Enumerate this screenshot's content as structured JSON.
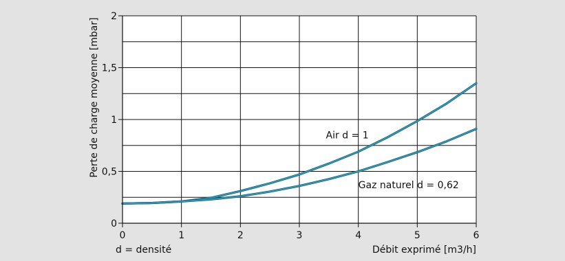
{
  "chart_data": {
    "type": "line",
    "title": "",
    "xlabel": "Débit exprimé [m3/h]",
    "ylabel": "Perte de charge moyenne [mbar]",
    "xlim": [
      0,
      6
    ],
    "ylim": [
      0,
      2
    ],
    "x_ticks": [
      0,
      1,
      2,
      3,
      4,
      5,
      6
    ],
    "x_tick_labels": [
      "0",
      "1",
      "2",
      "3",
      "4",
      "5",
      "6"
    ],
    "y_ticks": [
      0,
      0.5,
      1,
      1.5,
      2
    ],
    "y_tick_labels": [
      "0",
      "0,5",
      "1",
      "1,5",
      "2"
    ],
    "grid": true,
    "note": "d = densité",
    "series": [
      {
        "name": "Air d = 1",
        "color": "#2a9fc0",
        "x": [
          0,
          0.5,
          1,
          1.5,
          2,
          2.5,
          3,
          3.5,
          4,
          4.5,
          5,
          5.5,
          6
        ],
        "y": [
          0.19,
          0.195,
          0.21,
          0.245,
          0.31,
          0.385,
          0.47,
          0.575,
          0.69,
          0.83,
          0.985,
          1.155,
          1.35
        ]
      },
      {
        "name": "Gaz naturel d = 0,62",
        "color": "#2a9fc0",
        "x": [
          0,
          0.5,
          1,
          1.5,
          2,
          2.5,
          3,
          3.5,
          4,
          4.5,
          5,
          5.5,
          6
        ],
        "y": [
          0.19,
          0.195,
          0.21,
          0.23,
          0.26,
          0.305,
          0.36,
          0.425,
          0.5,
          0.59,
          0.685,
          0.79,
          0.91
        ]
      }
    ]
  }
}
